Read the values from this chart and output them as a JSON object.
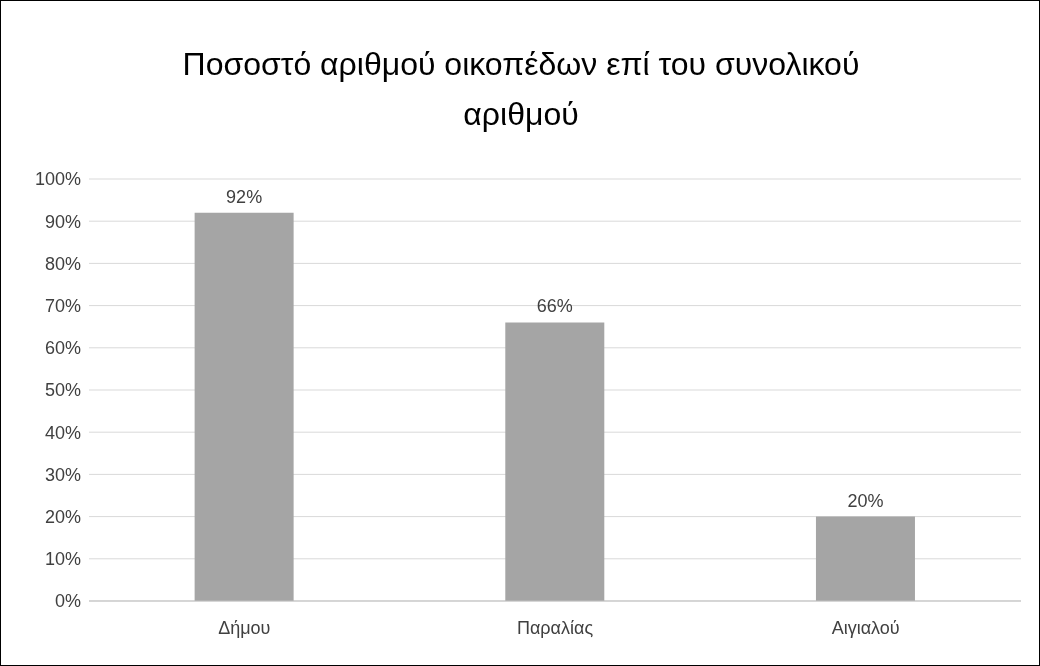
{
  "chart_data": {
    "type": "bar",
    "title": "Ποσοστό αριθμού οικοπέδων επί του συνολικού αριθμού",
    "categories": [
      "Δήμου",
      "Παραλίας",
      "Αιγιαλού"
    ],
    "values": [
      92,
      66,
      20
    ],
    "color": "#a5a5a5",
    "value_labels": [
      "92%",
      "66%",
      "20%"
    ],
    "ylim": [
      0,
      100
    ],
    "yticks": [
      {
        "value": 0,
        "label": "0%"
      },
      {
        "value": 10,
        "label": "10%"
      },
      {
        "value": 20,
        "label": "20%"
      },
      {
        "value": 30,
        "label": "30%"
      },
      {
        "value": 40,
        "label": "40%"
      },
      {
        "value": 50,
        "label": "50%"
      },
      {
        "value": 60,
        "label": "60%"
      },
      {
        "value": 70,
        "label": "70%"
      },
      {
        "value": 80,
        "label": "80%"
      },
      {
        "value": 90,
        "label": "90%"
      },
      {
        "value": 100,
        "label": "100%"
      }
    ],
    "grid": "y"
  }
}
